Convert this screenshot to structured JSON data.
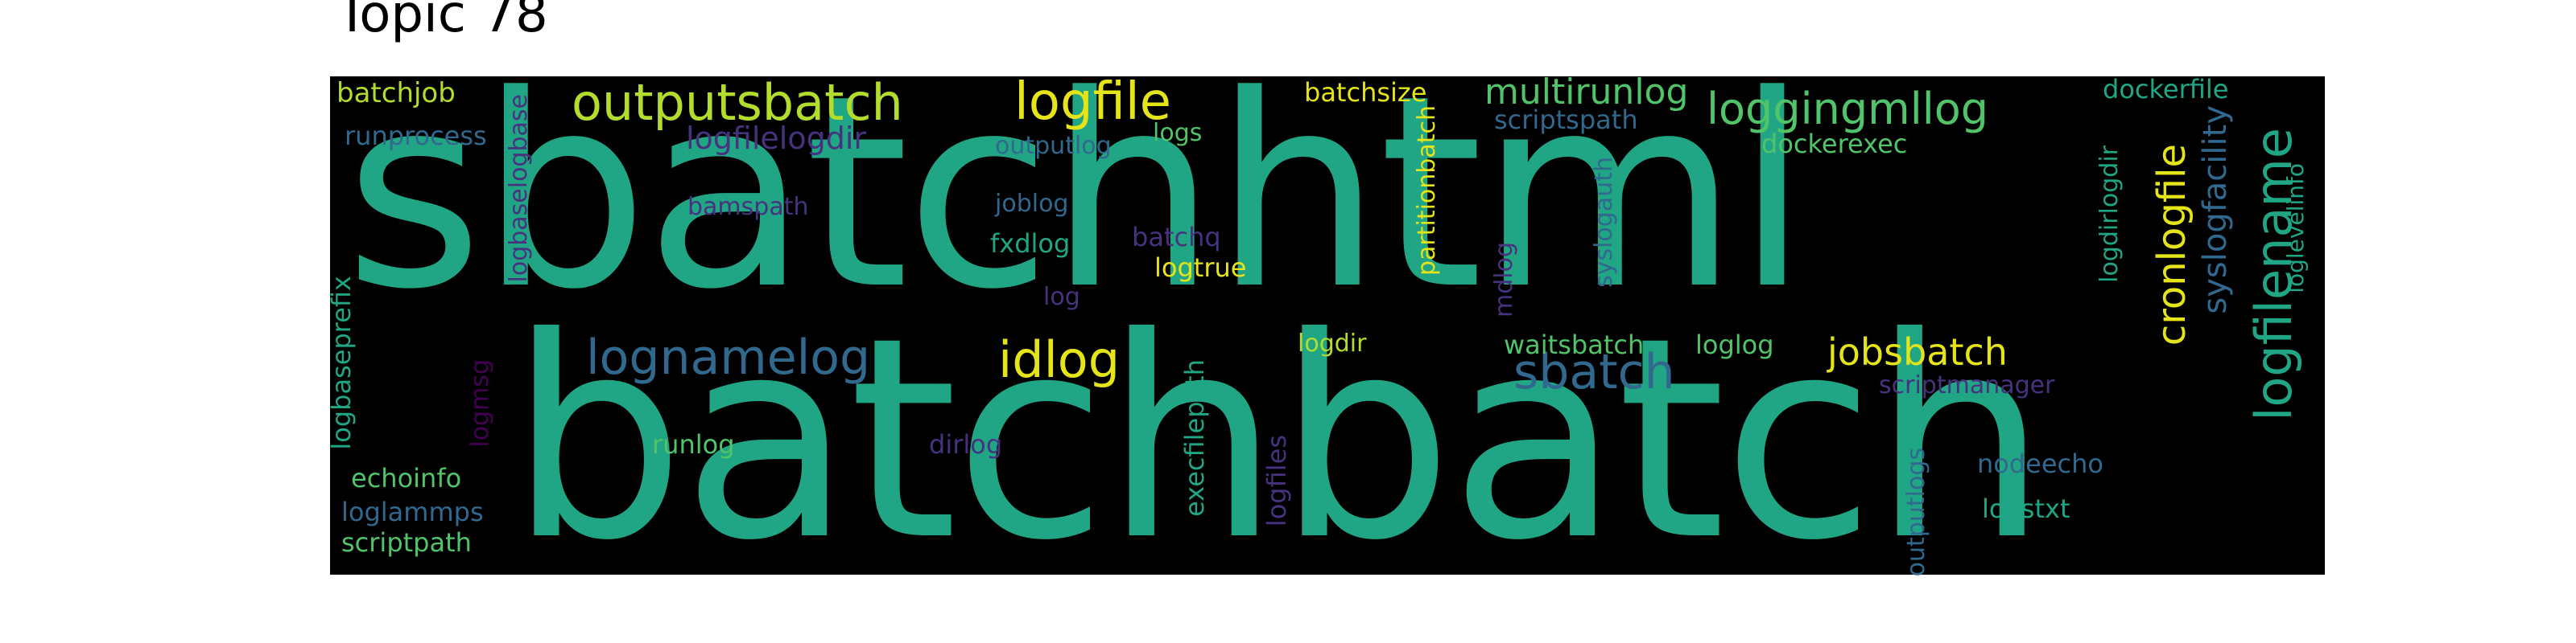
{
  "title": "Topic 78",
  "colors": {
    "background": "#000000",
    "teal": "#21a685",
    "yellow": "#e5e419",
    "lime": "#b2dd2c",
    "green": "#51c46a",
    "blue": "#31688e",
    "indigo": "#443983",
    "violet": "#46327e",
    "purple": "#440154"
  },
  "words": [
    "sbatchhtml",
    "batchbatch",
    "outputsbatch",
    "logfile",
    "loggingmllog",
    "multirunlog",
    "batchjob",
    "runprocess",
    "logfilelogdir",
    "outputlog",
    "logs",
    "batchsize",
    "scriptspath",
    "dockerexec",
    "dockerfile",
    "logfilename",
    "cronlogfile",
    "syslogfacility",
    "loglevelinfo",
    "logdirlogdir",
    "logbaseprefix",
    "logbaselogbase",
    "bamspath",
    "joblog",
    "fxdlog",
    "batchq",
    "logtrue",
    "log",
    "partitionbatch",
    "mdlog",
    "syslogauth",
    "lognamelog",
    "idlog",
    "sbatch",
    "jobsbatch",
    "logdir",
    "waitsbatch",
    "loglog",
    "scriptmanager",
    "logmsg",
    "runlog",
    "dirlog",
    "echoinfo",
    "loglammps",
    "scriptpath",
    "execfilepath",
    "logfiles",
    "outputlogs",
    "nodeecho",
    "logstxt"
  ]
}
